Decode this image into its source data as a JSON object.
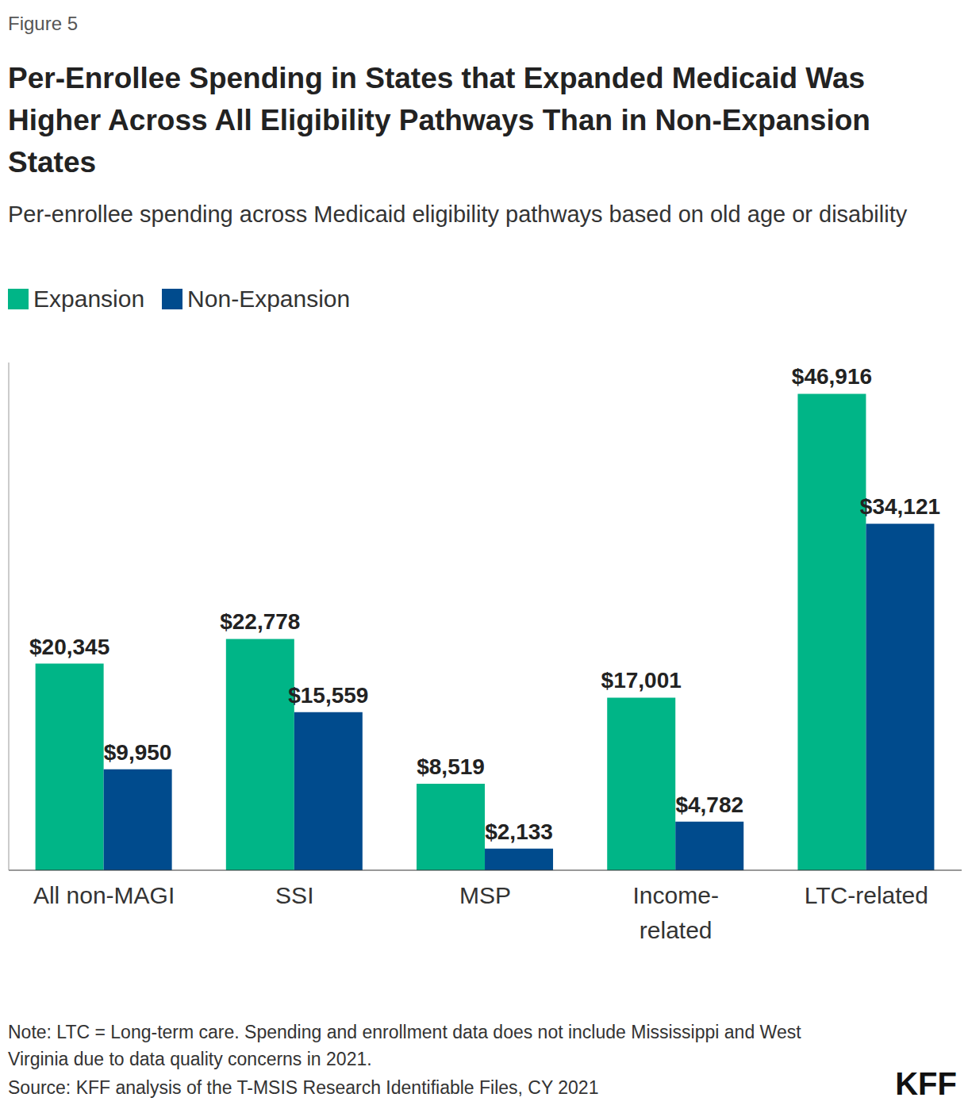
{
  "figure_label": "Figure 5",
  "chart_data": {
    "type": "bar",
    "title": "Per-Enrollee Spending in States that Expanded Medicaid Was Higher Across All Eligibility Pathways Than in Non-Expansion States",
    "subtitle": "Per-enrollee spending across Medicaid eligibility pathways based on old age or disability",
    "categories": [
      "All non-MAGI",
      "SSI",
      "MSP",
      "Income-related",
      "LTC-related"
    ],
    "series": [
      {
        "name": "Expansion",
        "color": "#00b587",
        "values": [
          20345,
          22778,
          8519,
          17001,
          46916
        ],
        "value_labels": [
          "$20,345",
          "$22,778",
          "$8,519",
          "$17,001",
          "$46,916"
        ]
      },
      {
        "name": "Non-Expansion",
        "color": "#004b8d",
        "values": [
          9950,
          15559,
          2133,
          4782,
          34121
        ],
        "value_labels": [
          "$9,950",
          "$15,559",
          "$2,133",
          "$4,782",
          "$34,121"
        ]
      }
    ],
    "ylim": [
      0,
      50000
    ],
    "data_labels": true,
    "tick_labels": "x",
    "grid": false,
    "legend": "top-left"
  },
  "note": "Note: LTC = Long-term care. Spending and enrollment data does not include Mississippi and West Virginia due to data quality concerns in 2021.",
  "source": "Source: KFF analysis of the T-MSIS Research Identifiable Files, CY 2021",
  "brand": "KFF"
}
